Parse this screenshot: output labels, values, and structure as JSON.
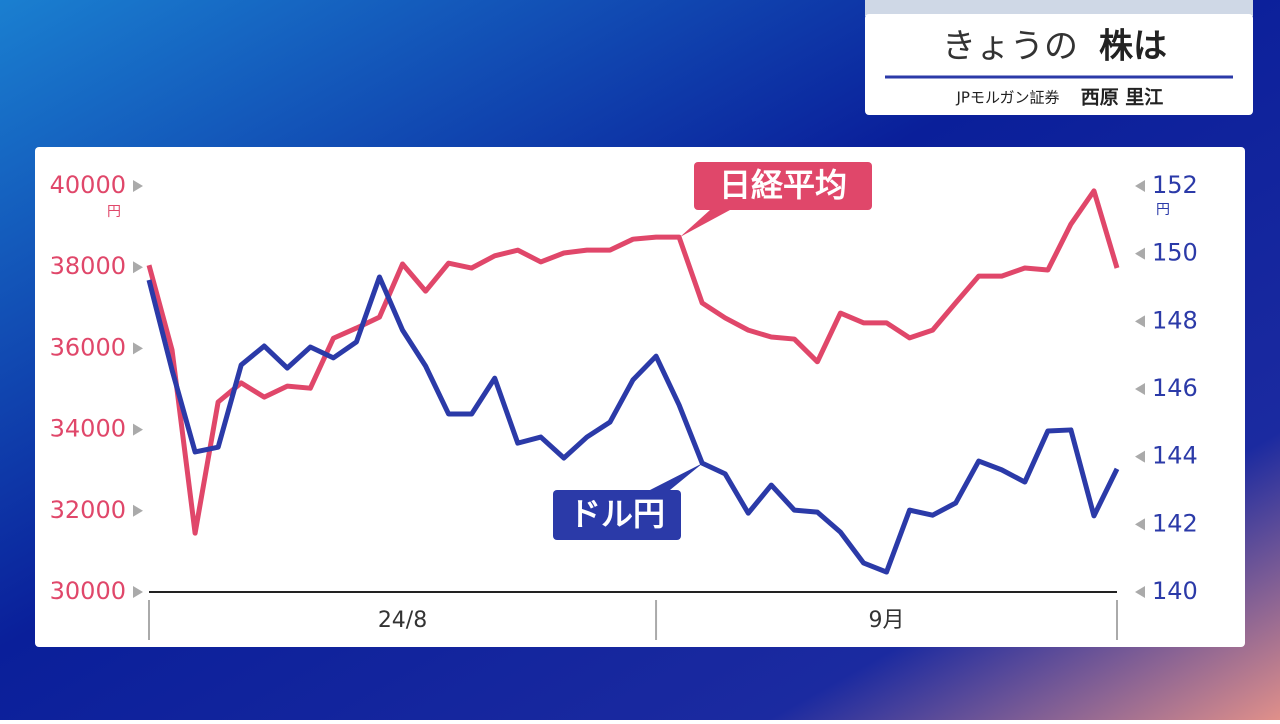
{
  "header": {
    "title": "きょうの",
    "title_emph": "株は",
    "subtitle": "JPモルガン証券",
    "person": "西原 里江"
  },
  "chart_data": {
    "type": "line",
    "x_period_labels": [
      "24/8",
      "9月"
    ],
    "xticks": [
      0,
      22,
      42
    ],
    "ylim": [
      30000,
      40000
    ],
    "yticks": [
      30000,
      32000,
      34000,
      36000,
      38000,
      40000
    ],
    "yunit": "円",
    "y2lim": [
      140,
      152
    ],
    "y2ticks": [
      140,
      142,
      144,
      146,
      148,
      150,
      152
    ],
    "y2unit": "円",
    "series": [
      {
        "name": "日経平均",
        "color": "#e0476a",
        "values": [
          38050,
          35960,
          31450,
          34680,
          35150,
          34800,
          35070,
          35020,
          36250,
          36500,
          36770,
          38080,
          37410,
          38100,
          37980,
          38280,
          38420,
          38130,
          38350,
          38420,
          38420,
          38690,
          38740,
          38740,
          37120,
          36750,
          36450,
          36280,
          36230,
          35670,
          36870,
          36630,
          36630,
          36260,
          36450,
          37120,
          37780,
          37780,
          37980,
          37930,
          39060,
          39880,
          37980
        ]
      },
      {
        "name": "ドル円",
        "color": "#2b3aa8",
        "axis": "y2",
        "values": [
          149.22,
          146.56,
          144.14,
          144.28,
          146.71,
          147.27,
          146.62,
          147.24,
          146.92,
          147.39,
          149.31,
          147.74,
          146.68,
          145.26,
          145.26,
          146.32,
          144.4,
          144.58,
          143.96,
          144.58,
          145.02,
          146.27,
          146.97,
          145.53,
          143.81,
          143.49,
          142.33,
          143.16,
          142.42,
          142.36,
          141.77,
          140.86,
          140.59,
          142.42,
          142.27,
          142.63,
          143.87,
          143.61,
          143.25,
          144.76,
          144.79,
          142.25,
          143.64
        ]
      }
    ]
  }
}
